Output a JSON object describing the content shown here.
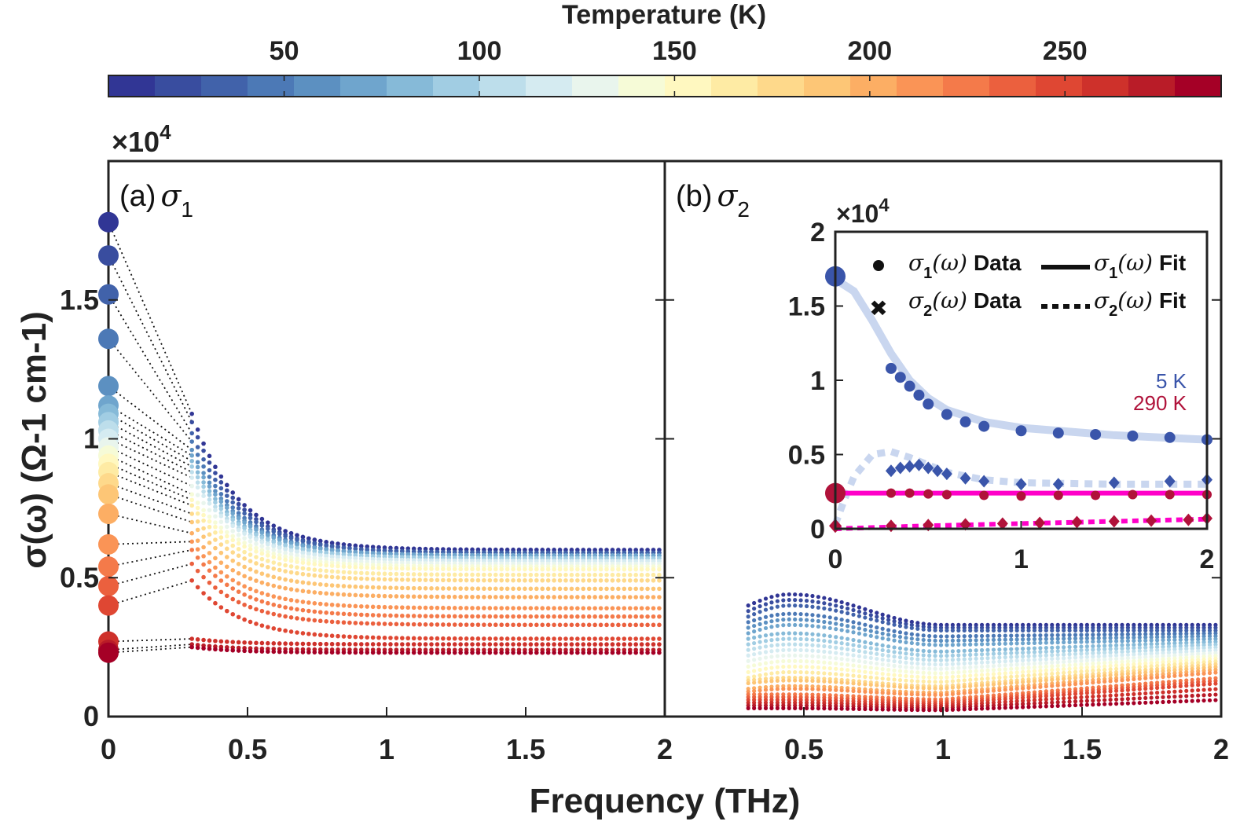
{
  "colors": {
    "axis": "#222222",
    "colormap": [
      "#313695",
      "#3a4fa0",
      "#4266ac",
      "#4f80b9",
      "#6398c6",
      "#79afd2",
      "#95c6df",
      "#b4d9e9",
      "#d0e8f1",
      "#e7f4f0",
      "#f6fbd8",
      "#fff8bf",
      "#fee9a0",
      "#fed585",
      "#fdbf70",
      "#fca35d",
      "#f8874f",
      "#ef6a43",
      "#e34e36",
      "#d2352c",
      "#bb1f28",
      "#a50026"
    ],
    "fit_sigma1_5K": "#c9d6ef",
    "fit_290K": "#ff00c8",
    "label_5K": "#3a55aa",
    "label_290K": "#b0123a"
  },
  "chart_data": [
    {
      "id": "colorbar",
      "type": "heatmap",
      "title": "Temperature (K)",
      "range": [
        5,
        290
      ],
      "ticks": [
        50,
        100,
        150,
        200,
        250
      ],
      "tick_labels": [
        "50",
        "100",
        "150",
        "200",
        "250"
      ],
      "n_levels": 24
    },
    {
      "id": "panel_a",
      "type": "scatter",
      "panel_label": "(a)",
      "quantity": "σ",
      "quantity_sub": "1",
      "xlabel": "Frequency (THz)",
      "ylabel": "σ(ω) (Ω-1 cm-1)",
      "exponent_label": "×10",
      "exponent_power": "4",
      "xlim": [
        0,
        2
      ],
      "ylim": [
        0,
        2
      ],
      "xticks": [
        0,
        0.5,
        1,
        1.5,
        2
      ],
      "xtick_labels": [
        "0",
        "0.5",
        "1",
        "1.5",
        "2"
      ],
      "yticks": [
        0,
        0.5,
        1,
        1.5
      ],
      "ytick_labels": [
        "0",
        "0.5",
        "1",
        "1.5"
      ],
      "data_freq_range": [
        0.3,
        2.0
      ],
      "dc_values_x1e4": [
        1.78,
        1.66,
        1.52,
        1.36,
        1.19,
        1.12,
        1.09,
        1.06,
        1.03,
        1.0,
        0.97,
        0.94,
        0.91,
        0.88,
        0.84,
        0.8,
        0.73,
        0.62,
        0.54,
        0.47,
        0.4,
        0.27,
        0.24,
        0.23
      ],
      "value_at_0p3THz_x1e4": [
        1.09,
        1.06,
        1.02,
        0.99,
        0.96,
        0.94,
        0.92,
        0.9,
        0.88,
        0.86,
        0.83,
        0.8,
        0.78,
        0.76,
        0.73,
        0.7,
        0.66,
        0.63,
        0.6,
        0.55,
        0.49,
        0.28,
        0.26,
        0.25
      ],
      "value_at_2THz_x1e4": [
        0.6,
        0.59,
        0.59,
        0.58,
        0.58,
        0.58,
        0.57,
        0.57,
        0.56,
        0.56,
        0.55,
        0.54,
        0.53,
        0.51,
        0.49,
        0.46,
        0.43,
        0.39,
        0.36,
        0.33,
        0.28,
        0.26,
        0.24,
        0.23
      ]
    },
    {
      "id": "panel_b",
      "type": "scatter",
      "panel_label": "(b)",
      "quantity": "σ",
      "quantity_sub": "2",
      "xlabel": "Frequency (THz)",
      "xlim": [
        0,
        2
      ],
      "ylim": [
        0,
        2
      ],
      "xticks": [
        0,
        0.5,
        1,
        1.5,
        2
      ],
      "xtick_labels": [
        "0",
        "0.5",
        "1",
        "1.5",
        "2"
      ],
      "data_freq_range": [
        0.3,
        2.0
      ],
      "peak_freq_THz": 0.45,
      "value_at_0p3THz_x1e4": [
        0.4,
        0.38,
        0.36,
        0.34,
        0.32,
        0.3,
        0.28,
        0.26,
        0.24,
        0.22,
        0.2,
        0.18,
        0.16,
        0.14,
        0.13,
        0.12,
        0.1,
        0.09,
        0.08,
        0.07,
        0.06,
        0.05,
        0.04,
        0.03
      ],
      "value_at_peak_x1e4": [
        0.44,
        0.42,
        0.4,
        0.37,
        0.35,
        0.33,
        0.3,
        0.28,
        0.26,
        0.24,
        0.22,
        0.2,
        0.18,
        0.16,
        0.14,
        0.13,
        0.11,
        0.1,
        0.08,
        0.07,
        0.06,
        0.05,
        0.04,
        0.03
      ],
      "value_at_2THz_x1e4": [
        0.33,
        0.32,
        0.31,
        0.3,
        0.29,
        0.28,
        0.27,
        0.26,
        0.25,
        0.24,
        0.23,
        0.22,
        0.21,
        0.2,
        0.19,
        0.18,
        0.17,
        0.16,
        0.14,
        0.13,
        0.12,
        0.1,
        0.08,
        0.06
      ]
    },
    {
      "id": "inset",
      "type": "line",
      "exponent_label": "×10",
      "exponent_power": "4",
      "xlim": [
        0,
        2
      ],
      "ylim": [
        0,
        2
      ],
      "xticks": [
        0,
        1,
        2
      ],
      "xtick_labels": [
        "0",
        "1",
        "2"
      ],
      "yticks": [
        0,
        0.5,
        1,
        1.5,
        2
      ],
      "ytick_labels": [
        "0",
        "0.5",
        "1",
        "1.5",
        "2"
      ],
      "legend": [
        {
          "symbol": "dot",
          "quantity": "σ",
          "sub": "1",
          "arg": "(ω)",
          "text": "Data"
        },
        {
          "symbol": "solid",
          "quantity": "σ",
          "sub": "1",
          "arg": "(ω)",
          "text": "Fit"
        },
        {
          "symbol": "cross",
          "quantity": "σ",
          "sub": "2",
          "arg": "(ω)",
          "text": "Data"
        },
        {
          "symbol": "dotted",
          "quantity": "σ",
          "sub": "2",
          "arg": "(ω)",
          "text": "Fit"
        }
      ],
      "series_labels": [
        "5 K",
        "290 K"
      ],
      "series": [
        {
          "name": "5 K",
          "dc_sigma1": 1.7,
          "sigma1_data": {
            "x": [
              0.3,
              0.35,
              0.4,
              0.45,
              0.5,
              0.6,
              0.7,
              0.8,
              1.0,
              1.2,
              1.4,
              1.6,
              1.8,
              2.0
            ],
            "y": [
              1.08,
              1.02,
              0.96,
              0.9,
              0.84,
              0.77,
              0.72,
              0.69,
              0.66,
              0.645,
              0.635,
              0.625,
              0.615,
              0.6
            ]
          },
          "sigma1_fit": {
            "x": [
              0,
              0.1,
              0.2,
              0.3,
              0.4,
              0.5,
              0.6,
              0.8,
              1.0,
              1.2,
              1.5,
              2.0
            ],
            "y": [
              1.68,
              1.6,
              1.4,
              1.18,
              1.0,
              0.88,
              0.8,
              0.72,
              0.68,
              0.66,
              0.63,
              0.6
            ]
          },
          "sigma2_data": {
            "x": [
              0.3,
              0.35,
              0.4,
              0.45,
              0.5,
              0.55,
              0.6,
              0.7,
              0.8,
              1.0,
              1.2,
              1.5,
              1.8,
              2.0
            ],
            "y": [
              0.39,
              0.41,
              0.42,
              0.43,
              0.41,
              0.39,
              0.37,
              0.34,
              0.32,
              0.3,
              0.3,
              0.31,
              0.32,
              0.33
            ]
          },
          "sigma2_fit": {
            "x": [
              0,
              0.05,
              0.1,
              0.2,
              0.3,
              0.4,
              0.5,
              0.6,
              0.8,
              1.0,
              1.5,
              2.0
            ],
            "y": [
              0.03,
              0.2,
              0.35,
              0.5,
              0.52,
              0.48,
              0.43,
              0.38,
              0.33,
              0.31,
              0.3,
              0.3
            ]
          }
        },
        {
          "name": "290 K",
          "dc_sigma1": 0.24,
          "sigma1_data": {
            "x": [
              0.3,
              0.4,
              0.5,
              0.6,
              0.8,
              1.0,
              1.2,
              1.4,
              1.6,
              1.8,
              2.0
            ],
            "y": [
              0.24,
              0.24,
              0.235,
              0.23,
              0.225,
              0.22,
              0.225,
              0.225,
              0.23,
              0.23,
              0.23
            ]
          },
          "sigma1_fit": {
            "x": [
              0,
              2
            ],
            "y": [
              0.24,
              0.24
            ]
          },
          "sigma2_data": {
            "x": [
              0.3,
              0.5,
              0.7,
              0.9,
              1.1,
              1.3,
              1.5,
              1.7,
              1.9,
              2.0
            ],
            "y": [
              0.02,
              0.025,
              0.03,
              0.035,
              0.04,
              0.045,
              0.05,
              0.055,
              0.06,
              0.07
            ]
          },
          "sigma2_fit": {
            "x": [
              0,
              0.5,
              1.0,
              1.5,
              2.0
            ],
            "y": [
              0.0,
              0.02,
              0.035,
              0.05,
              0.065
            ]
          }
        }
      ]
    }
  ]
}
